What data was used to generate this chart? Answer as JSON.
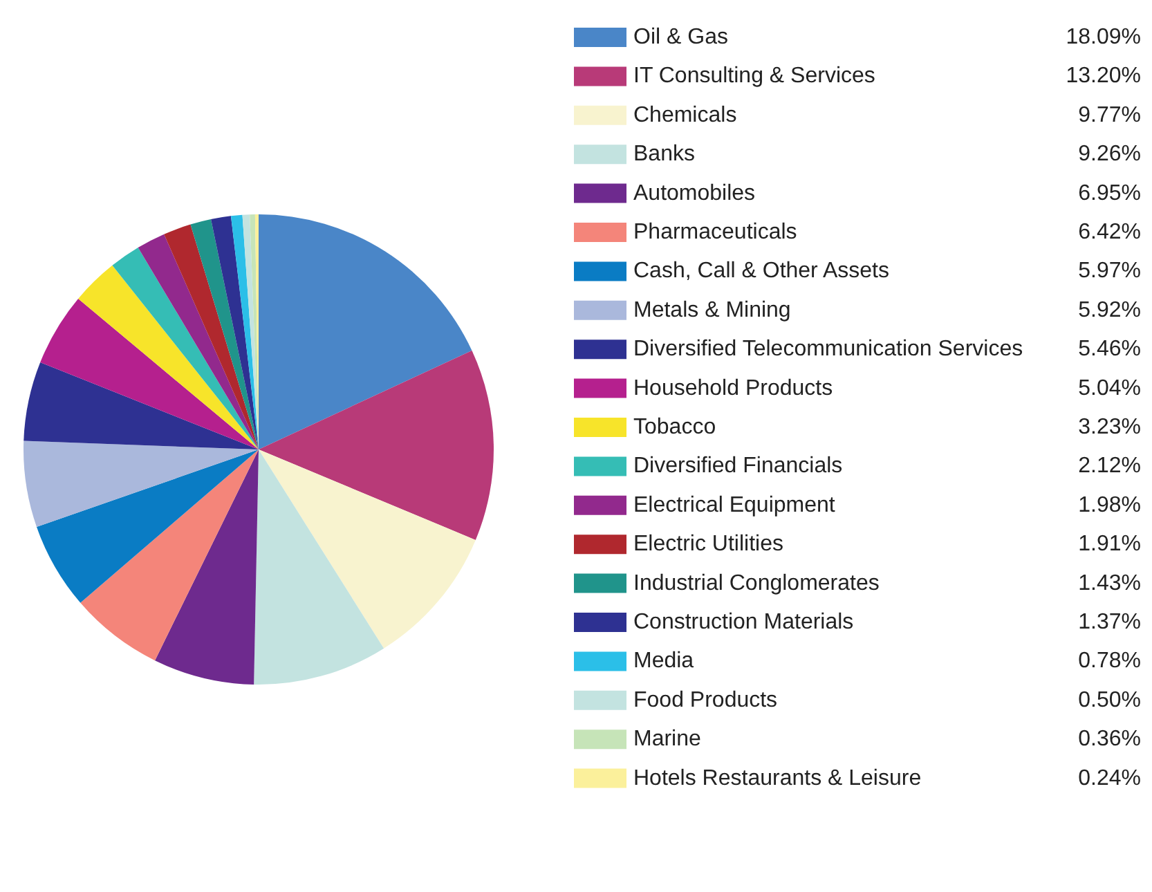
{
  "chart_data": {
    "type": "pie",
    "categories": [
      "Oil & Gas",
      "IT Consulting & Services",
      "Chemicals",
      "Banks",
      "Automobiles",
      "Pharmaceuticals",
      "Cash, Call & Other Assets",
      "Metals & Mining",
      "Diversified Telecommunication Services",
      "Household Products",
      "Tobacco",
      "Diversified Financials",
      "Electrical Equipment",
      "Electric Utilities",
      "Industrial Conglomerates",
      "Construction Materials",
      "Media",
      "Food Products",
      "Marine",
      "Hotels Restaurants & Leisure"
    ],
    "values": [
      18.09,
      13.2,
      9.77,
      9.26,
      6.95,
      6.42,
      5.97,
      5.92,
      5.46,
      5.04,
      3.23,
      2.12,
      1.98,
      1.91,
      1.43,
      1.37,
      0.78,
      0.5,
      0.36,
      0.24
    ],
    "value_labels": [
      "18.09%",
      "13.20%",
      "9.77%",
      "9.26%",
      "6.95%",
      "6.42%",
      "5.97%",
      "5.92%",
      "5.46%",
      "5.04%",
      "3.23%",
      "2.12%",
      "1.98%",
      "1.91%",
      "1.43%",
      "1.37%",
      "0.78%",
      "0.50%",
      "0.36%",
      "0.24%"
    ],
    "colors": [
      "#4a86c8",
      "#b83a78",
      "#f8f3cf",
      "#c3e3e0",
      "#6e2a8e",
      "#f4857a",
      "#0a7cc4",
      "#aab8dc",
      "#2e3192",
      "#b5208e",
      "#f7e42a",
      "#35bdb5",
      "#92298d",
      "#b0282e",
      "#20948b",
      "#2e3192",
      "#2bbfe8",
      "#c3e3e0",
      "#c6e4b8",
      "#fbf09b"
    ],
    "legend": "right"
  }
}
